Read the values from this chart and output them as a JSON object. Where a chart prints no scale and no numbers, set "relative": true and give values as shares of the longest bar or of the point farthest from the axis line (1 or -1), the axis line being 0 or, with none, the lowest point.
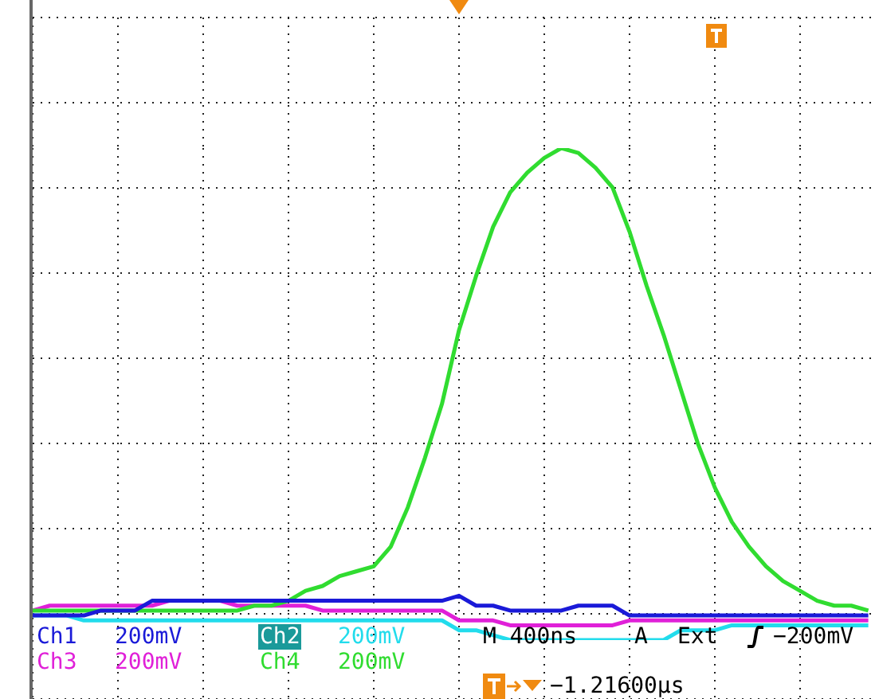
{
  "chart_data": {
    "type": "line",
    "relative": true,
    "grid": true,
    "marker": "none",
    "line_style": "solid",
    "categories": [
      null,
      null,
      null,
      null,
      null,
      null,
      null,
      null,
      null,
      null,
      null,
      null,
      null,
      null,
      null,
      null,
      null,
      null,
      null,
      null,
      null,
      null,
      null,
      null,
      null,
      null,
      null,
      null,
      null,
      null,
      null,
      null,
      null,
      null,
      null,
      null,
      null,
      null,
      null,
      null,
      null,
      null,
      null,
      null,
      null,
      null,
      null,
      null,
      null,
      null
    ],
    "series": [
      {
        "name": "Ch1",
        "color": "#1a1ad8",
        "values": [
          0.05,
          0.05,
          0.05,
          0.05,
          0.06,
          0.06,
          0.06,
          0.08,
          0.08,
          0.08,
          0.08,
          0.08,
          0.08,
          0.08,
          0.08,
          0.08,
          0.08,
          0.08,
          0.08,
          0.08,
          0.08,
          0.08,
          0.08,
          0.08,
          0.08,
          0.09,
          0.07,
          0.07,
          0.06,
          0.06,
          0.06,
          0.06,
          0.07,
          0.07,
          0.07,
          0.05,
          0.05,
          0.05,
          0.05,
          0.05,
          0.05,
          0.05,
          0.05,
          0.05,
          0.05,
          0.05,
          0.05,
          0.05,
          0.05,
          0.05
        ]
      },
      {
        "name": "Ch2",
        "color": "#22dcec",
        "values": [
          0.05,
          0.05,
          0.05,
          0.04,
          0.04,
          0.04,
          0.04,
          0.04,
          0.04,
          0.04,
          0.04,
          0.04,
          0.04,
          0.04,
          0.04,
          0.04,
          0.04,
          0.04,
          0.04,
          0.04,
          0.04,
          0.04,
          0.04,
          0.04,
          0.04,
          0.02,
          0.02,
          0.01,
          0,
          0,
          0,
          0,
          0,
          0,
          0,
          0,
          0,
          0,
          0.02,
          0.02,
          0.02,
          0.03,
          0.03,
          0.03,
          0.03,
          0.03,
          0.03,
          0.03,
          0.03,
          0.03
        ]
      },
      {
        "name": "Ch3",
        "color": "#e020d8",
        "values": [
          0.06,
          0.07,
          0.07,
          0.07,
          0.07,
          0.07,
          0.07,
          0.07,
          0.08,
          0.08,
          0.08,
          0.08,
          0.07,
          0.07,
          0.07,
          0.07,
          0.07,
          0.06,
          0.06,
          0.06,
          0.06,
          0.06,
          0.06,
          0.06,
          0.06,
          0.04,
          0.04,
          0.04,
          0.03,
          0.03,
          0.03,
          0.03,
          0.03,
          0.03,
          0.03,
          0.04,
          0.04,
          0.04,
          0.04,
          0.04,
          0.04,
          0.04,
          0.04,
          0.04,
          0.04,
          0.04,
          0.04,
          0.04,
          0.04,
          0.04
        ]
      },
      {
        "name": "Ch4",
        "color": "#30dc30",
        "values": [
          0.06,
          0.06,
          0.06,
          0.06,
          0.06,
          0.06,
          0.06,
          0.06,
          0.06,
          0.06,
          0.06,
          0.06,
          0.06,
          0.07,
          0.07,
          0.08,
          0.1,
          0.11,
          0.13,
          0.14,
          0.15,
          0.19,
          0.27,
          0.37,
          0.48,
          0.63,
          0.74,
          0.84,
          0.91,
          0.95,
          0.98,
          1,
          0.99,
          0.96,
          0.92,
          0.83,
          0.72,
          0.62,
          0.51,
          0.4,
          0.31,
          0.24,
          0.19,
          0.15,
          0.12,
          0.1,
          0.08,
          0.07,
          0.07,
          0.06
        ]
      }
    ],
    "annotations": [
      "200mV",
      "200mV",
      "200mV",
      "200mV",
      "M 400ns",
      "A",
      "Ext",
      "−200mV",
      "−1.21600µs"
    ]
  }
}
